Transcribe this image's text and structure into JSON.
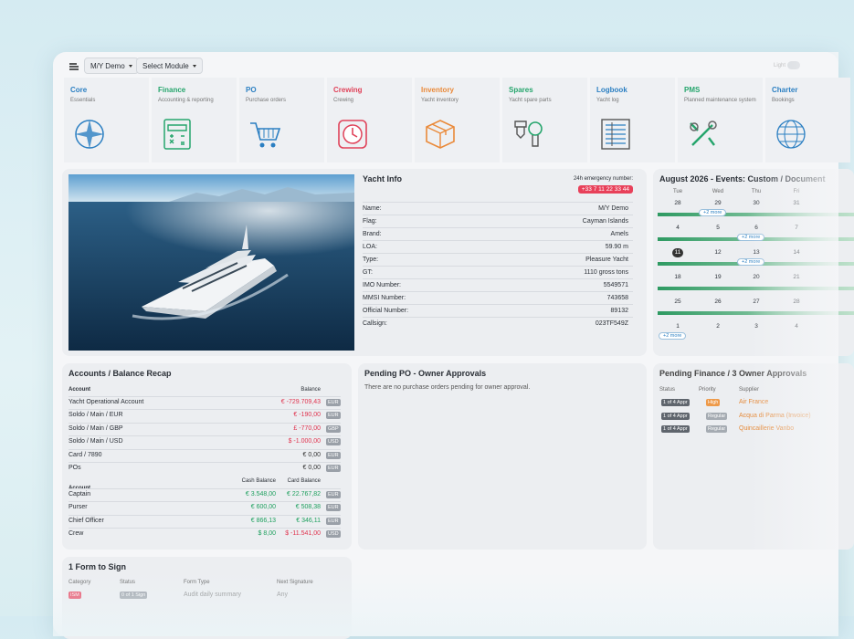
{
  "topbar": {
    "vessel": "M/Y Demo",
    "module": "Select Module",
    "theme": "Light"
  },
  "modules": [
    {
      "name": "Core",
      "desc": "Essentials",
      "color": "#2b7fc2"
    },
    {
      "name": "Finance",
      "desc": "Accounting & reporting",
      "color": "#25a56c"
    },
    {
      "name": "PO",
      "desc": "Purchase orders",
      "color": "#2b7fc2"
    },
    {
      "name": "Crewing",
      "desc": "Crewing",
      "color": "#e0435a"
    },
    {
      "name": "Inventory",
      "desc": "Yacht inventory",
      "color": "#ea8a3a"
    },
    {
      "name": "Spares",
      "desc": "Yacht spare parts",
      "color": "#25a56c"
    },
    {
      "name": "Logbook",
      "desc": "Yacht log",
      "color": "#2b7fc2"
    },
    {
      "name": "PMS",
      "desc": "Planned maintenance system",
      "color": "#25a56c"
    },
    {
      "name": "Charter",
      "desc": "Bookings",
      "color": "#2b7fc2"
    }
  ],
  "yacht_info": {
    "title": "Yacht Info",
    "emergency_label": "24h emergency number:",
    "emergency_number": "+33 7 11 22 33 44",
    "fields": [
      {
        "label": "Name:",
        "value": "M/Y Demo"
      },
      {
        "label": "Flag:",
        "value": "Cayman Islands"
      },
      {
        "label": "Brand:",
        "value": "Amels"
      },
      {
        "label": "LOA:",
        "value": "59.90 m"
      },
      {
        "label": "Type:",
        "value": "Pleasure Yacht"
      },
      {
        "label": "GT:",
        "value": "1110 gross tons"
      },
      {
        "label": "IMO Number:",
        "value": "5549571"
      },
      {
        "label": "MMSI Number:",
        "value": "743658"
      },
      {
        "label": "Official Number:",
        "value": "89132"
      },
      {
        "label": "Callsign:",
        "value": "023TF549Z"
      }
    ]
  },
  "calendar": {
    "title": "August 2026 - Events: Custom / Document",
    "weekdays": [
      "Tue",
      "Wed",
      "Thu",
      "Fri"
    ],
    "weeks": [
      [
        28,
        29,
        30,
        31
      ],
      [
        4,
        5,
        6,
        7
      ],
      [
        11,
        12,
        13,
        14
      ],
      [
        18,
        19,
        20,
        21
      ],
      [
        25,
        26,
        27,
        28
      ],
      [
        1,
        2,
        3,
        4
      ]
    ],
    "today": [
      2,
      0
    ],
    "more": [
      {
        "week": 0,
        "day": 1,
        "label": "+2 more"
      },
      {
        "week": 1,
        "day": 2,
        "label": "+2 more"
      },
      {
        "week": 2,
        "day": 2,
        "label": "+2 more"
      },
      {
        "week": 5,
        "day": 0,
        "label": "+2 more"
      }
    ]
  },
  "accounts": {
    "title": "Accounts / Balance Recap",
    "header": [
      "Account",
      "Balance"
    ],
    "rows": [
      {
        "account": "Yacht Operational Account",
        "balance": "€ -729.709,43",
        "currency": "EUR"
      },
      {
        "account": "Soldo / Main / EUR",
        "balance": "€ -190,00",
        "currency": "EUR"
      },
      {
        "account": "Soldo / Main / GBP",
        "balance": "£ -770,00",
        "currency": "GBP"
      },
      {
        "account": "Soldo / Main / USD",
        "balance": "$ -1.000,00",
        "currency": "USD"
      },
      {
        "account": "Card / 7890",
        "balance": "€ 0,00",
        "currency": "EUR"
      },
      {
        "account": "POs",
        "balance": "€ 0,00",
        "currency": "EUR"
      }
    ],
    "crew_header": [
      "Account",
      "Cash Balance",
      "Card Balance"
    ],
    "crew_rows": [
      {
        "account": "Captain",
        "cash": "€ 3.548,00",
        "card": "€ 22.767,82",
        "currency": "EUR"
      },
      {
        "account": "Purser",
        "cash": "€ 600,00",
        "card": "€ 508,38",
        "currency": "EUR"
      },
      {
        "account": "Chief Officer",
        "cash": "€ 866,13",
        "card": "€ 346,11",
        "currency": "EUR"
      },
      {
        "account": "Crew",
        "cash": "$ 8,00",
        "card": "$ -11.541,00",
        "currency": "USD"
      }
    ]
  },
  "pending_po": {
    "title": "Pending PO - Owner Approvals",
    "message": "There are no purchase orders pending for owner approval."
  },
  "pending_finance": {
    "title": "Pending Finance / 3 Owner Approvals",
    "header": [
      "Status",
      "Priority",
      "Supplier"
    ],
    "rows": [
      {
        "status": "1 of 4 Appr",
        "priority": "High",
        "supplier": "Air France"
      },
      {
        "status": "1 of 4 Appr",
        "priority": "Regular",
        "supplier": "Acqua di Parma (Invoice)"
      },
      {
        "status": "1 of 4 Appr",
        "priority": "Regular",
        "supplier": "Quincaillerie Vanbo"
      }
    ]
  },
  "forms": {
    "title": "1 Form to Sign",
    "header": [
      "Category",
      "Status",
      "Form Type",
      "Next Signature"
    ],
    "rows": [
      {
        "category": "ISM",
        "status": "0 of 1 Sign",
        "type": "Audit daily summary",
        "next": "Any"
      }
    ]
  }
}
